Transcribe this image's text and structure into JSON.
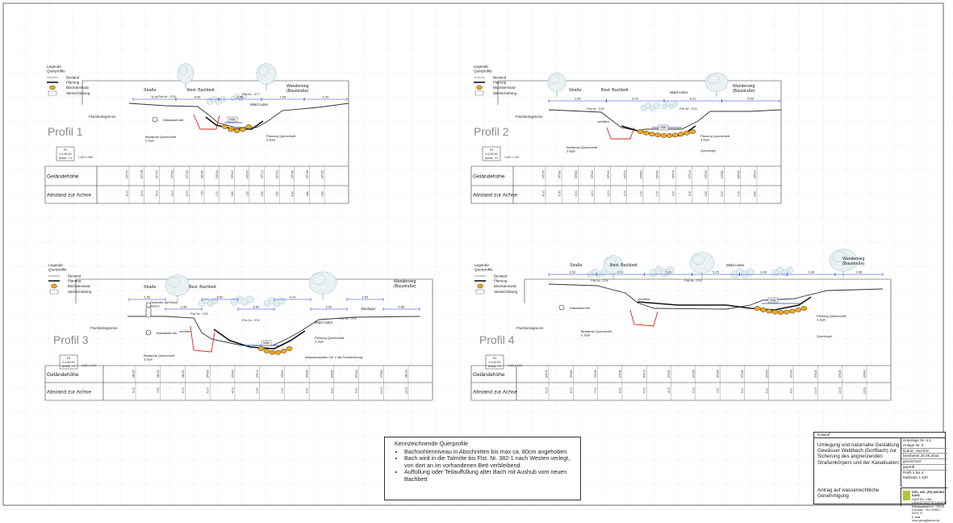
{
  "legend": {
    "title": "Legende\nQuerprofile",
    "bestand": "Bestand",
    "planung": "Planung",
    "blockstein": "Blocksteinsatz",
    "steinschuettung": "Steinschüttung",
    "flurstueck": "Flurstücksgrenze"
  },
  "rows": {
    "gelaende": "Geländehöhe",
    "abstand": "Abstand zur Achse"
  },
  "profiles": [
    {
      "title": "Profil 1",
      "scale_box": [
        "P1",
        "f=1:50.00",
        "Achse -Y1"
      ],
      "scale_note": "1:100 L: H/H",
      "labels": {
        "strasse": "Straße",
        "bachbett": "Best. Bachbett",
        "wanderweg": "Wanderweg\n(Baustraße)",
        "flst1": "Flst Nr.: 378",
        "flst2": "Flst Nr.: 377",
        "wald": "Wald roden",
        "klaer": "Kläwasserrohr",
        "bestands_q": "Bestands Querschnitt\n2.5qm",
        "planung_q": "Planung Querschnitt\n2.6qm",
        "mw": "MW",
        "dims": [
          "5.78",
          "4.00",
          "1.58",
          "1.55",
          "1.70"
        ]
      },
      "gelaende_values": [
        "377.70",
        "377.75",
        "377.70",
        "377.60",
        "377.30",
        "376.40",
        "376.30",
        "376.20",
        "376.50",
        "377.10",
        "377.30",
        "377.40",
        "377.45",
        "377.50"
      ],
      "abstand_values": [
        "-6.00",
        "-5.00",
        "-4.00",
        "-3.00",
        "-2.00",
        "-1.50",
        "0.00",
        "0.80",
        "1.50",
        "2.50",
        "3.50",
        "4.20",
        "4.80",
        "5.60"
      ]
    },
    {
      "title": "Profil 2",
      "scale_box": [
        "P2",
        "f=1:50.00",
        "Achse -Y1"
      ],
      "scale_note": "1:100 L: H/H",
      "labels": {
        "strasse": "Straße",
        "bachbett": "Best. Bachbett",
        "wanderweg": "Wanderweg\n(Baustraße)",
        "flst1": "Flst Nr.: 378",
        "flst2": "Flst Nr.: 378",
        "wald": "Wald roden",
        "verfuellen": "verfüllen",
        "bestands_q": "Bestands Querschnitt\n3.8qm",
        "planung_q": "Planung Querschnitt\n3.4qm",
        "quer": "Querriegel",
        "mw": "MW",
        "dims": [
          "1.50",
          "5.70",
          "6.10",
          "5.00"
        ]
      },
      "gelaende_values": [
        "375.70",
        "375.80",
        "375.60",
        "375.40",
        "375.30",
        "375.00",
        "374.60",
        "374.50",
        "374.70",
        "375.10",
        "375.50",
        "375.80",
        "375.90",
        "376.00"
      ],
      "abstand_values": [
        "-8.00",
        "-6.50",
        "-5.00",
        "-4.00",
        "-3.00",
        "-2.00",
        "0.00",
        "1.00",
        "2.00",
        "3.00",
        "4.50",
        "6.00",
        "7.00",
        "8.50"
      ]
    },
    {
      "title": "Profil 3",
      "scale_box": [
        "P3",
        "f=1:50.00",
        "Achse -Y1"
      ],
      "scale_note": "1:100 L: H/H",
      "labels": {
        "strasse": "Straße",
        "bachbett": "Best. Bachbett",
        "wanderweg": "Wanderweg\n(Baustraße)",
        "gelaender": "Geländer auf Block\nsetzen",
        "flst1": "Flst Nr.: 378",
        "flst2": "Flst Nr.: 378",
        "flst3": "Flst Nr.: 378",
        "wald": "Wald roden",
        "baulager": "Baulager",
        "klaer": "Kläwasserrohr",
        "verfuellen": "verfüllen",
        "bestands_q": "Bestands Querschnitt\n3.3qm",
        "planung_q": "Planung Querschnitt\n3.3qm",
        "wasserbau": "Wasserbaustein GK V als Fußsicherung",
        "mw": "MW",
        "dims": [
          "1.50",
          "2.36",
          "8.50",
          "6.69",
          "4.14",
          "2.50",
          "2.05",
          "1.80"
        ]
      },
      "gelaende_values": [
        "380.50",
        "380.40",
        "380.20",
        "379.90",
        "379.60",
        "379.10",
        "378.50",
        "378.40",
        "378.60",
        "379.20",
        "379.80",
        "380.30"
      ],
      "abstand_values": [
        "-9.00",
        "-7.50",
        "-6.00",
        "-5.00",
        "-4.00",
        "-2.50",
        "0.00",
        "2.00",
        "5.00",
        "9.00",
        "11.00",
        "13.00"
      ]
    },
    {
      "title": "Profil 4",
      "scale_box": [
        "P4",
        "f=1:50.00",
        "Achse -Y1"
      ],
      "scale_note": "1:100 L: H/H",
      "labels": {
        "strasse": "Straße",
        "bachbett": "Best. Bachbett",
        "wanderweg": "Wanderweg\n(Baustraße)",
        "flst1": "Flst Nr.: 378",
        "flst2": "Flst Nr.: 378",
        "wald": "Wald roden",
        "klaer": "Kläwasserrohr",
        "verfuellen": "verfüllen",
        "bestands_q": "Bestands Querschnitt\n3.3qm",
        "planung_q": "Planung Querschnitt\n3.3qm",
        "quer": "Querriegel",
        "mw": "MW",
        "dims": [
          "1.50",
          "2.30",
          "7.14",
          "5.25",
          "3.00",
          "2.00",
          "2.05"
        ]
      },
      "gelaende_values": [
        "374.70",
        "374.60",
        "374.50",
        "374.40",
        "374.10",
        "373.90",
        "373.80",
        "373.60",
        "373.40",
        "373.50",
        "373.90",
        "374.20",
        "374.40",
        "374.60"
      ],
      "abstand_values": [
        "-9.00",
        "-8.00",
        "-7.00",
        "-6.00",
        "-5.00",
        "-4.00",
        "-2.00",
        "0.00",
        "3.00",
        "6.00",
        "8.00",
        "10.00",
        "12.00",
        "13.50"
      ]
    }
  ],
  "notes": {
    "heading": "Kennzeichnende Querprofile",
    "items": [
      "Bachsohlenniveau in Abschnitten bis max ca. 80cm angehoben",
      "Bach wird in die Talmitte bis Flst. Nr. 382-1 nach Westen verlegt, von dort an im vorhandenen Bett verbleibend.",
      "Auffüllung oder Teilauffüllung alter Bach mit Aushub vom neuen Bachbett"
    ]
  },
  "title_block": {
    "status": "Entwurf",
    "description": "Umlegung und naturnahe Gestaltung Gewässer Waldbach (Dorfbach) zur Sicherung des angrenzenden Straßenkörpers und der Kanalisation",
    "unterlage": "Unterlage Nr.:4.1",
    "anlage": "Anlage Nr.:3",
    "datum_header": "Datum",
    "zeichen_header": "Zeichen",
    "bearbeitet": "bearbeitet",
    "bearbeitet_date": "25.05.2015",
    "gezeichnet": "gezeichnet",
    "geprueft": "geprüft",
    "profil_range": "Profil 1 bis 4",
    "massstab": "Maßstab 1:100",
    "antrag": "Antrag auf wasserrechtliche Genehmigung",
    "office": "DIPL. ING. (FH) GEORG KUNZ",
    "office_sub": "GARTEN- UND LANDSCHAFTSPLANUNG",
    "office_addr": "Rathausstraße 5 · 72175 Dornhan · Tel. 07455 / 9229-70",
    "office_mail": "E-Mail: kunz.georg@arcor.de"
  },
  "colors": {
    "grid": "#d5d5d5",
    "line": "#1a1a1a",
    "blue": "#2c3fd1",
    "red": "#e02020",
    "orange": "#f1a81c",
    "tree": "#8fb9c2",
    "tree_dark": "#5e8f9b"
  }
}
